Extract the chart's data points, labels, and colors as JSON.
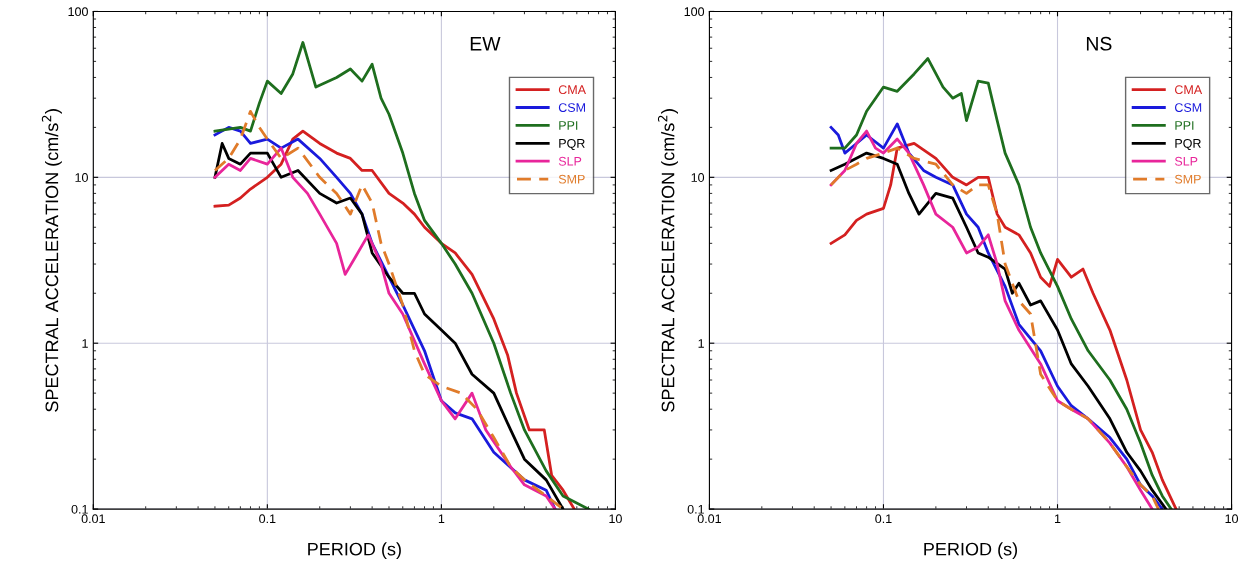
{
  "chart_data": [
    {
      "type": "line",
      "xlabel": "PERIOD (s)",
      "ylabel": "SPECTRAL ACCELERATION (cm/s$^{2}$)",
      "annotations": [
        "EW"
      ],
      "log": "xy",
      "grid": true,
      "legend": "top right",
      "xlim": [
        0.01,
        10
      ],
      "ylim": [
        0.1,
        100
      ],
      "xticks": [
        0.01,
        0.1,
        1,
        10
      ],
      "yticks": [
        0.1,
        1,
        10,
        100
      ],
      "series": [
        {
          "name": "CMA",
          "color": "#d42020",
          "x": [
            0.05,
            0.06,
            0.07,
            0.08,
            0.1,
            0.12,
            0.14,
            0.16,
            0.2,
            0.25,
            0.3,
            0.35,
            0.4,
            0.5,
            0.6,
            0.7,
            0.8,
            1.0,
            1.2,
            1.5,
            2.0,
            2.4,
            2.7,
            3.2,
            3.9,
            4.3,
            5.0,
            5.8
          ],
          "values": [
            6.7,
            6.8,
            7.5,
            8.5,
            10,
            12,
            17,
            19,
            16,
            14,
            13,
            11,
            11,
            8,
            7,
            6,
            5,
            4,
            3.5,
            2.6,
            1.4,
            0.85,
            0.5,
            0.3,
            0.3,
            0.16,
            0.13,
            0.1
          ]
        },
        {
          "name": "CSM",
          "color": "#1a1adc",
          "x": [
            0.05,
            0.06,
            0.07,
            0.08,
            0.1,
            0.12,
            0.15,
            0.2,
            0.25,
            0.3,
            0.35,
            0.4,
            0.5,
            0.6,
            0.8,
            1.0,
            1.2,
            1.5,
            2,
            3,
            4,
            4.5
          ],
          "values": [
            18,
            20,
            19,
            16,
            17,
            15,
            17,
            13,
            10,
            8,
            6,
            4,
            2.5,
            1.7,
            0.9,
            0.45,
            0.38,
            0.35,
            0.22,
            0.15,
            0.13,
            0.1
          ]
        },
        {
          "name": "PPI",
          "color": "#1e6e1e",
          "x": [
            0.05,
            0.07,
            0.08,
            0.09,
            0.1,
            0.12,
            0.14,
            0.16,
            0.19,
            0.25,
            0.3,
            0.35,
            0.4,
            0.45,
            0.5,
            0.6,
            0.7,
            0.8,
            1.0,
            1.2,
            1.5,
            2,
            2.5,
            3,
            4,
            5,
            7
          ],
          "values": [
            19,
            20,
            19,
            28,
            38,
            32,
            42,
            65,
            35,
            40,
            45,
            38,
            48,
            30,
            24,
            14,
            8,
            5.5,
            4,
            3,
            2,
            1.0,
            0.5,
            0.3,
            0.17,
            0.12,
            0.1
          ]
        },
        {
          "name": "PQR",
          "color": "#000000",
          "x": [
            0.05,
            0.055,
            0.06,
            0.07,
            0.08,
            0.1,
            0.12,
            0.15,
            0.2,
            0.25,
            0.3,
            0.35,
            0.4,
            0.5,
            0.6,
            0.7,
            0.8,
            1.0,
            1.2,
            1.5,
            2,
            2.5,
            3,
            4,
            5
          ],
          "values": [
            10,
            16,
            13,
            12,
            14,
            14,
            10,
            11,
            8,
            7,
            7.5,
            6,
            3.5,
            2.5,
            2,
            2,
            1.5,
            1.2,
            1.0,
            0.65,
            0.5,
            0.3,
            0.2,
            0.15,
            0.1
          ]
        },
        {
          "name": "SLP",
          "color": "#e8259a",
          "x": [
            0.05,
            0.06,
            0.07,
            0.08,
            0.1,
            0.12,
            0.14,
            0.17,
            0.2,
            0.25,
            0.28,
            0.32,
            0.38,
            0.45,
            0.5,
            0.6,
            0.8,
            1.0,
            1.2,
            1.5,
            1.8,
            2.5,
            3,
            4,
            4.5
          ],
          "values": [
            10,
            12,
            11,
            13,
            12,
            15,
            10,
            8,
            6,
            4,
            2.6,
            3.3,
            4.5,
            3,
            2,
            1.5,
            0.75,
            0.45,
            0.35,
            0.5,
            0.3,
            0.18,
            0.14,
            0.12,
            0.1
          ]
        },
        {
          "name": "SMP",
          "color": "#e07b2a",
          "line_style": "dashed",
          "x": [
            0.05,
            0.06,
            0.07,
            0.08,
            0.09,
            0.1,
            0.12,
            0.15,
            0.2,
            0.25,
            0.3,
            0.35,
            0.4,
            0.45,
            0.5,
            0.6,
            0.7,
            0.8,
            1,
            1.3,
            1.6,
            2,
            2.5,
            3,
            4,
            5
          ],
          "values": [
            11,
            13,
            17,
            25,
            20,
            17,
            13,
            15,
            10,
            8,
            6,
            9,
            7,
            4,
            3,
            1.7,
            0.9,
            0.65,
            0.55,
            0.5,
            0.4,
            0.27,
            0.18,
            0.15,
            0.12,
            0.1
          ]
        }
      ]
    },
    {
      "type": "line",
      "xlabel": "PERIOD (s)",
      "ylabel": "SPECTRAL ACCELERATION (cm/s$^{2}$)",
      "annotations": [
        "NS"
      ],
      "log": "xy",
      "grid": true,
      "legend": "top right",
      "xlim": [
        0.01,
        10
      ],
      "ylim": [
        0.1,
        100
      ],
      "xticks": [
        0.01,
        0.1,
        1,
        10
      ],
      "yticks": [
        0.1,
        1,
        10,
        100
      ],
      "series": [
        {
          "name": "CMA",
          "color": "#d42020",
          "x": [
            0.05,
            0.06,
            0.07,
            0.08,
            0.1,
            0.11,
            0.12,
            0.15,
            0.2,
            0.25,
            0.3,
            0.35,
            0.4,
            0.45,
            0.5,
            0.6,
            0.7,
            0.8,
            0.9,
            1.0,
            1.2,
            1.4,
            1.6,
            2,
            2.5,
            3,
            3.5,
            4,
            4.8
          ],
          "values": [
            4,
            4.5,
            5.5,
            6,
            6.5,
            9,
            15,
            16,
            13,
            10,
            9,
            10,
            10,
            6,
            5,
            4.5,
            3.5,
            2.5,
            2.2,
            3.2,
            2.5,
            2.8,
            2,
            1.2,
            0.6,
            0.3,
            0.22,
            0.15,
            0.1
          ]
        },
        {
          "name": "CSM",
          "color": "#1a1adc",
          "x": [
            0.05,
            0.055,
            0.06,
            0.07,
            0.08,
            0.1,
            0.12,
            0.14,
            0.17,
            0.2,
            0.25,
            0.3,
            0.35,
            0.4,
            0.5,
            0.6,
            0.8,
            1.0,
            1.2,
            1.5,
            2,
            2.5,
            3,
            3.5,
            4
          ],
          "values": [
            20,
            18,
            14,
            16,
            18,
            15,
            21,
            14,
            11,
            10,
            9,
            6,
            5,
            3.5,
            2.2,
            1.3,
            0.9,
            0.55,
            0.42,
            0.35,
            0.27,
            0.2,
            0.14,
            0.12,
            0.1
          ]
        },
        {
          "name": "PPI",
          "color": "#1e6e1e",
          "x": [
            0.05,
            0.06,
            0.07,
            0.08,
            0.1,
            0.12,
            0.15,
            0.18,
            0.22,
            0.25,
            0.28,
            0.3,
            0.35,
            0.4,
            0.45,
            0.5,
            0.6,
            0.7,
            0.8,
            1.0,
            1.2,
            1.5,
            2,
            2.5,
            3,
            3.5,
            4,
            4.5
          ],
          "values": [
            15,
            15,
            18,
            25,
            35,
            33,
            42,
            52,
            35,
            30,
            32,
            22,
            38,
            37,
            22,
            14,
            9,
            5,
            3.5,
            2.2,
            1.4,
            0.9,
            0.6,
            0.4,
            0.25,
            0.16,
            0.12,
            0.1
          ]
        },
        {
          "name": "PQR",
          "color": "#000000",
          "x": [
            0.05,
            0.06,
            0.08,
            0.1,
            0.12,
            0.14,
            0.16,
            0.2,
            0.25,
            0.3,
            0.35,
            0.4,
            0.5,
            0.55,
            0.6,
            0.7,
            0.8,
            1.0,
            1.2,
            1.5,
            2,
            2.5,
            3,
            3.5,
            4.2
          ],
          "values": [
            11,
            12,
            14,
            13,
            12,
            8,
            6,
            8,
            7.5,
            5,
            3.5,
            3.3,
            2.8,
            2,
            2.3,
            1.7,
            1.8,
            1.2,
            0.75,
            0.55,
            0.35,
            0.22,
            0.17,
            0.13,
            0.1
          ]
        },
        {
          "name": "SLP",
          "color": "#e8259a",
          "x": [
            0.05,
            0.06,
            0.07,
            0.08,
            0.09,
            0.1,
            0.12,
            0.14,
            0.17,
            0.2,
            0.25,
            0.3,
            0.35,
            0.4,
            0.45,
            0.5,
            0.6,
            0.8,
            1,
            1.2,
            1.5,
            2,
            2.5,
            3,
            3.5
          ],
          "values": [
            9,
            11,
            16,
            19,
            15,
            14,
            17,
            14,
            9,
            6,
            5,
            3.5,
            3.8,
            4.5,
            3,
            1.8,
            1.2,
            0.75,
            0.45,
            0.4,
            0.35,
            0.25,
            0.18,
            0.13,
            0.1
          ]
        },
        {
          "name": "SMP",
          "color": "#e07b2a",
          "line_style": "dashed",
          "x": [
            0.05,
            0.06,
            0.07,
            0.08,
            0.1,
            0.12,
            0.15,
            0.2,
            0.25,
            0.3,
            0.35,
            0.4,
            0.45,
            0.5,
            0.6,
            0.7,
            0.8,
            1.0,
            1.2,
            1.5,
            2,
            2.5,
            3,
            3.5,
            3.8
          ],
          "values": [
            9,
            11,
            12,
            13,
            14,
            15,
            13,
            12,
            9,
            8,
            9,
            9,
            6,
            3,
            1.8,
            1.5,
            0.65,
            0.45,
            0.4,
            0.35,
            0.25,
            0.18,
            0.14,
            0.12,
            0.1
          ]
        }
      ]
    }
  ]
}
